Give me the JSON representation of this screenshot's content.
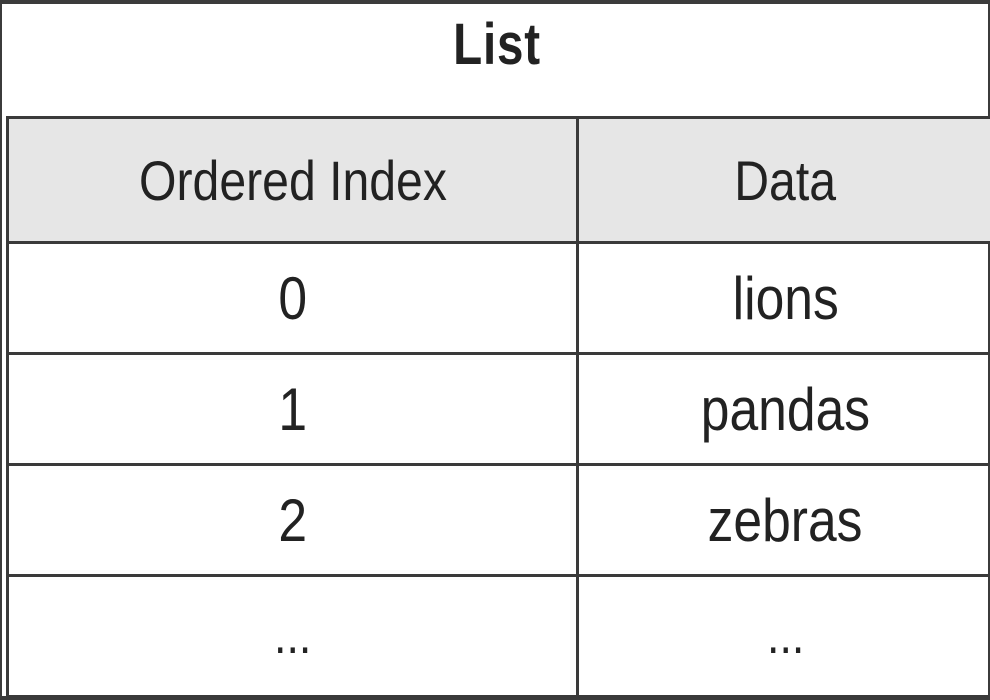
{
  "title": "List",
  "table": {
    "headers": [
      "Ordered Index",
      "Data"
    ],
    "rows": [
      [
        "0",
        "lions"
      ],
      [
        "1",
        "pandas"
      ],
      [
        "2",
        "zebras"
      ],
      [
        "...",
        "..."
      ]
    ]
  },
  "colors": {
    "header_background": "#e6e6e6",
    "border": "#3a3a3a",
    "text": "#222222"
  }
}
